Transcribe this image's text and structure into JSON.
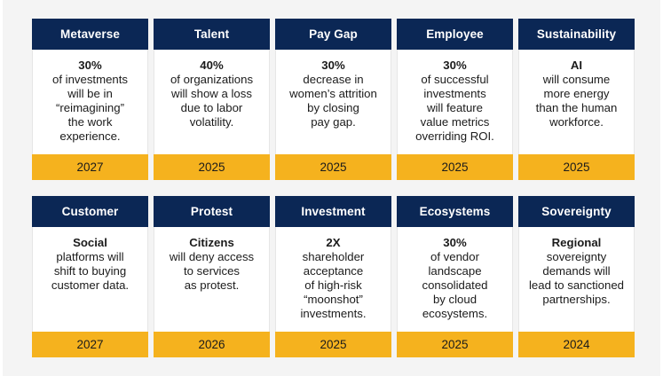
{
  "cards": [
    {
      "title": "Metaverse",
      "lead": "30%",
      "text": "of investments\nwill be in\n“reimagining”\nthe work\nexperience.",
      "year": "2027"
    },
    {
      "title": "Talent",
      "lead": "40%",
      "text": "of organizations\nwill show a loss\ndue to labor\nvolatility.",
      "year": "2025"
    },
    {
      "title": "Pay Gap",
      "lead": "30%",
      "text": "decrease in\nwomen’s attrition\nby closing\npay gap.",
      "year": "2025"
    },
    {
      "title": "Employee",
      "lead": "30%",
      "text": "of successful\ninvestments\nwill feature\nvalue metrics\noverriding ROI.",
      "year": "2025"
    },
    {
      "title": "Sustainability",
      "lead": "AI",
      "text": "will consume\nmore energy\nthan the human\nworkforce.",
      "year": "2025"
    },
    {
      "title": "Customer",
      "lead": "Social",
      "text": "platforms will\nshift to buying\ncustomer data.",
      "year": "2027"
    },
    {
      "title": "Protest",
      "lead": "Citizens",
      "text": "will deny access\nto services\nas protest.",
      "year": "2026"
    },
    {
      "title": "Investment",
      "lead": "2X",
      "text": "shareholder\nacceptance\nof high-risk\n“moonshot”\ninvestments.",
      "year": "2025"
    },
    {
      "title": "Ecosystems",
      "lead": "30%",
      "text": "of vendor\nlandscape\nconsolidated\nby cloud\necosystems.",
      "year": "2025"
    },
    {
      "title": "Sovereignty",
      "lead": "Regional",
      "text": "sovereignty\ndemands will\nlead to sanctioned\npartnerships.",
      "year": "2024"
    }
  ],
  "colors": {
    "header_bg": "#0b2755",
    "footer_bg": "#f5b21e",
    "body_bg": "#ffffff",
    "page_bg": "#f4f4f4"
  }
}
